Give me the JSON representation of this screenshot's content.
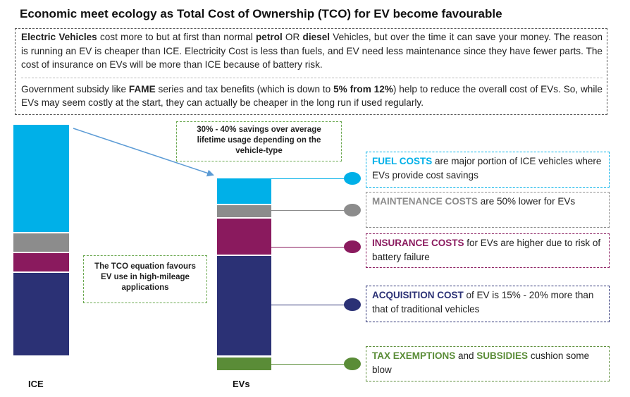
{
  "title": "Economic meet ecology as Total Cost of Ownership (TCO) for EV become favourable",
  "intro": {
    "p1": {
      "s1": "Electric Vehicles",
      "s2": " cost more to but at first than normal ",
      "s3": "petrol",
      "s4": " OR ",
      "s5": "diesel",
      "s6": " Vehicles, but over the time it can save your money. The reason is running an EV is cheaper than ICE. Electricity Cost is less than fuels, and EV need less maintenance since they have fewer parts. The cost of insurance on EVs will be more than ICE because of battery risk."
    },
    "p2": {
      "s1": "Government subsidy like ",
      "s2": "FAME",
      "s3": " series and tax benefits (which is down to ",
      "s4": "5% from 12%",
      "s5": ") help to reduce the overall cost of EVs. So, while EVs may seem costly at the start, they can actually be cheaper in the long run if used regularly."
    }
  },
  "callouts": {
    "savings": "30% - 40% savings over average lifetime usage depending on the vehicle-type",
    "tco": "The TCO equation favours EV use in high-mileage applications"
  },
  "x_labels": {
    "ice": "ICE",
    "evs": "EVs"
  },
  "colors": {
    "fuel": "#00b0e8",
    "maintenance": "#8c8c8c",
    "insurance": "#8a1a5e",
    "acquisition": "#2b3175",
    "tax": "#5a8c37",
    "arrow": "#5b9bd5"
  },
  "notes": {
    "fuel": {
      "strong": "FUEL COSTS",
      "rest": " are major portion of ICE vehicles where EVs provide cost savings"
    },
    "maintenance": {
      "strong": "MAINTENANCE COSTS",
      "rest": " are 50% lower for EVs"
    },
    "insurance": {
      "strong": "INSURANCE COSTS",
      "rest": " for EVs are higher due to risk of battery failure"
    },
    "acquisition": {
      "strong": "ACQUISITION COST",
      "rest": " of EV is 15% - 20% more than that of traditional vehicles"
    },
    "tax": {
      "strong1": "TAX EXEMPTIONS",
      "mid": " and ",
      "strong2": "SUBSIDIES",
      "rest": " cushion some blow"
    }
  }
}
